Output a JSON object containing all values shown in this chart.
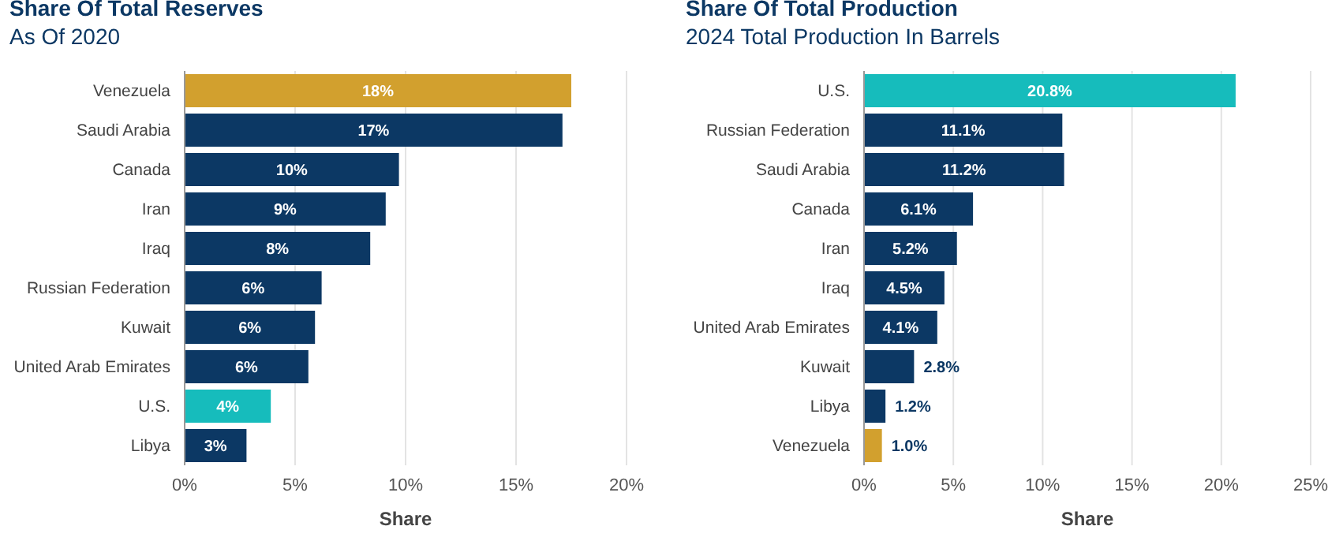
{
  "chart_data": [
    {
      "type": "bar",
      "orientation": "horizontal",
      "title": "Share Of Total Reserves",
      "subtitle": "As Of 2020",
      "xlabel": "Share",
      "categories": [
        "Venezuela",
        "Saudi Arabia",
        "Canada",
        "Iran",
        "Iraq",
        "Russian Federation",
        "Kuwait",
        "United Arab Emirates",
        "U.S.",
        "Libya"
      ],
      "values": [
        17.5,
        17.1,
        9.7,
        9.1,
        8.4,
        6.2,
        5.9,
        5.6,
        3.9,
        2.8
      ],
      "value_labels": [
        "18%",
        "17%",
        "10%",
        "9%",
        "8%",
        "6%",
        "6%",
        "6%",
        "4%",
        "3%"
      ],
      "colors": [
        "#d2a02e",
        "#0c3864",
        "#0c3864",
        "#0c3864",
        "#0c3864",
        "#0c3864",
        "#0c3864",
        "#0c3864",
        "#16bcbc",
        "#0c3864"
      ],
      "xlim": [
        0,
        20
      ],
      "xticks": [
        {
          "value": 0,
          "label": "0%"
        },
        {
          "value": 5,
          "label": "5%"
        },
        {
          "value": 10,
          "label": "10%"
        },
        {
          "value": 15,
          "label": "15%"
        },
        {
          "value": 20,
          "label": "20%"
        }
      ],
      "grid": "x"
    },
    {
      "type": "bar",
      "orientation": "horizontal",
      "title": "Share Of Total Production",
      "subtitle": "2024 Total Production In Barrels",
      "xlabel": "Share",
      "categories": [
        "U.S.",
        "Russian Federation",
        "Saudi Arabia",
        "Canada",
        "Iran",
        "Iraq",
        "United Arab Emirates",
        "Kuwait",
        "Libya",
        "Venezuela"
      ],
      "values": [
        20.8,
        11.1,
        11.2,
        6.1,
        5.2,
        4.5,
        4.1,
        2.8,
        1.2,
        1.0
      ],
      "value_labels": [
        "20.8%",
        "11.1%",
        "11.2%",
        "6.1%",
        "5.2%",
        "4.5%",
        "4.1%",
        "2.8%",
        "1.2%",
        "1.0%"
      ],
      "colors": [
        "#16bcbc",
        "#0c3864",
        "#0c3864",
        "#0c3864",
        "#0c3864",
        "#0c3864",
        "#0c3864",
        "#0c3864",
        "#0c3864",
        "#d2a02e"
      ],
      "xlim": [
        0,
        25
      ],
      "xticks": [
        {
          "value": 0,
          "label": "0%"
        },
        {
          "value": 5,
          "label": "5%"
        },
        {
          "value": 10,
          "label": "10%"
        },
        {
          "value": 15,
          "label": "15%"
        },
        {
          "value": 20,
          "label": "20%"
        },
        {
          "value": 25,
          "label": "25%"
        }
      ],
      "grid": "x"
    }
  ]
}
